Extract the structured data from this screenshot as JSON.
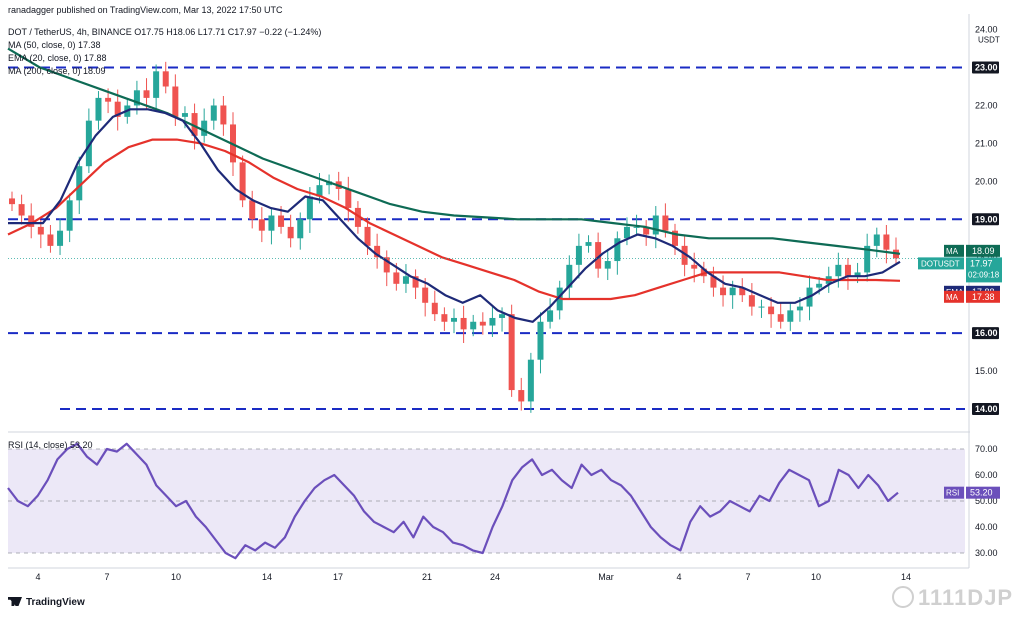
{
  "header": {
    "published": "ranadagger published on TradingView.com, Mar 13, 2022 17:50 UTC",
    "symbol_line": "DOT / TetherUS, 4h, BINANCE  O17.75  H18.06  L17.71  C17.97  −0.22 (−1.24%)",
    "ind1": "MA (50, close, 0)  17.38",
    "ind2": "EMA (20, close, 0)  17.88",
    "ind3": "MA (200, close, 0)  18.09",
    "rsi_label": "RSI (14, close)  53.20",
    "branding": "TradingView",
    "watermark": "1111DJP"
  },
  "colors": {
    "up": "#26a69a",
    "down": "#ef5350",
    "ema": "#1e2a78",
    "ma50": "#e5322b",
    "ma200": "#0e6b55",
    "rsi": "#6b4fbb",
    "rsi_band": "#ece8f7",
    "dash": "#1a2bc4"
  },
  "chart_data": {
    "type": "candlestick",
    "title": "DOT / TetherUS, 4h, BINANCE",
    "currency": "USDT",
    "ylim": [
      13.5,
      24.2
    ],
    "price_ticks": [
      "24.00",
      "23.00",
      "22.00",
      "21.00",
      "20.00",
      "19.00",
      "18.00",
      "17.00",
      "16.00",
      "15.00",
      "14.00"
    ],
    "x_ticks": [
      "4",
      "7",
      "10",
      "14",
      "17",
      "21",
      "24",
      "Mar",
      "4",
      "7",
      "10",
      "14"
    ],
    "horizontal_levels": [
      23.0,
      19.0,
      16.0,
      14.0
    ],
    "last_price": 17.97,
    "countdown": "02:09:18",
    "ticker": "DOTUSDT",
    "price_badges": [
      {
        "label": "MA",
        "value": "18.09",
        "color": "ma200"
      },
      {
        "label": "DOTUSDT",
        "value": "17.97",
        "color": "up"
      },
      {
        "label": "EMA",
        "value": "17.88",
        "color": "ema"
      },
      {
        "label": "MA",
        "value": "17.38",
        "color": "ma50"
      }
    ],
    "closes": [
      19.4,
      19.1,
      18.8,
      18.6,
      18.3,
      18.7,
      19.5,
      20.4,
      21.6,
      22.2,
      22.1,
      21.7,
      22.0,
      22.4,
      22.2,
      22.9,
      22.5,
      21.7,
      21.8,
      21.2,
      21.6,
      22.0,
      21.5,
      20.5,
      19.5,
      19.0,
      18.7,
      19.1,
      18.8,
      18.5,
      19.0,
      19.6,
      19.9,
      20.0,
      19.8,
      19.3,
      18.8,
      18.3,
      18.0,
      17.6,
      17.3,
      17.5,
      17.2,
      16.8,
      16.5,
      16.3,
      16.4,
      16.1,
      16.3,
      16.2,
      16.4,
      16.5,
      14.5,
      14.2,
      15.3,
      16.3,
      16.6,
      17.2,
      17.8,
      18.3,
      18.4,
      17.7,
      17.9,
      18.5,
      18.8,
      18.8,
      18.6,
      19.1,
      18.7,
      18.3,
      17.8,
      17.7,
      17.5,
      17.2,
      17.0,
      17.2,
      17.0,
      16.7,
      16.7,
      16.5,
      16.3,
      16.6,
      16.7,
      17.2,
      17.3,
      17.5,
      17.8,
      17.5,
      17.6,
      18.3,
      18.6,
      18.2,
      17.97
    ],
    "ema20": [
      18.9,
      18.9,
      18.9,
      19.5,
      20.5,
      21.2,
      21.7,
      21.9,
      21.9,
      21.8,
      21.6,
      21.0,
      20.3,
      19.8,
      19.5,
      19.3,
      19.2,
      19.6,
      19.5,
      19.0,
      18.5,
      18.1,
      17.8,
      17.5,
      17.3,
      17.0,
      16.8,
      17.0,
      16.6,
      16.4,
      16.3,
      16.7,
      17.2,
      17.7,
      18.1,
      18.4,
      18.6,
      18.5,
      18.3,
      18.0,
      17.6,
      17.3,
      17.2,
      17.0,
      16.8,
      16.8,
      17.0,
      17.3,
      17.5,
      17.5,
      17.6,
      17.88
    ],
    "ma50": [
      18.6,
      18.9,
      19.3,
      19.9,
      20.5,
      20.9,
      21.1,
      21.1,
      21.0,
      20.8,
      20.5,
      20.1,
      19.8,
      19.6,
      19.3,
      18.9,
      18.6,
      18.3,
      18.0,
      17.8,
      17.6,
      17.4,
      17.1,
      16.9,
      16.9,
      16.9,
      17.0,
      17.2,
      17.4,
      17.6,
      17.6,
      17.6,
      17.6,
      17.5,
      17.4,
      17.4,
      17.4,
      17.38
    ],
    "ma200": [
      23.5,
      23.0,
      22.7,
      22.4,
      22.1,
      21.8,
      21.4,
      21.0,
      20.6,
      20.3,
      20.0,
      19.7,
      19.4,
      19.2,
      19.1,
      19.05,
      19.0,
      19.0,
      19.0,
      18.9,
      18.8,
      18.6,
      18.5,
      18.5,
      18.5,
      18.4,
      18.3,
      18.2,
      18.09
    ],
    "rsi": {
      "label": "RSI (14, close)",
      "value": 53.2,
      "ylim": [
        25,
        75
      ],
      "ticks": [
        "70.00",
        "60.00",
        "50.00",
        "40.00",
        "30.00"
      ],
      "band": [
        30,
        70
      ],
      "values": [
        55,
        50,
        48,
        52,
        58,
        66,
        70,
        72,
        67,
        64,
        70,
        69,
        72,
        68,
        64,
        56,
        52,
        48,
        50,
        44,
        40,
        35,
        30,
        28,
        33,
        31,
        34,
        32,
        36,
        44,
        50,
        55,
        58,
        60,
        56,
        52,
        46,
        42,
        40,
        38,
        42,
        36,
        44,
        40,
        38,
        34,
        33,
        31,
        30,
        40,
        48,
        58,
        63,
        66,
        60,
        62,
        58,
        55,
        64,
        60,
        62,
        58,
        56,
        52,
        46,
        40,
        36,
        33,
        31,
        42,
        48,
        44,
        46,
        50,
        48,
        46,
        52,
        50,
        57,
        62,
        60,
        58,
        48,
        50,
        62,
        60,
        55,
        60,
        56,
        50,
        53.2
      ]
    }
  }
}
